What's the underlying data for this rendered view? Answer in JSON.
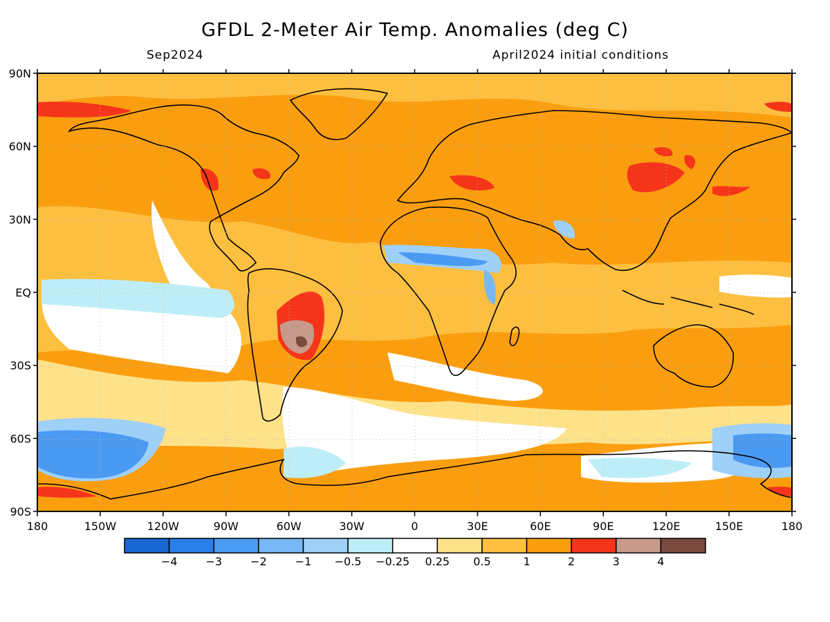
{
  "title": "GFDL 2-Meter Air Temp. Anomalies (deg C)",
  "subtitle_left": "Sep2024",
  "subtitle_right": "April2024 initial conditions",
  "lat_labels": [
    "90N",
    "60N",
    "30N",
    "EQ",
    "30S",
    "60S",
    "90S"
  ],
  "lon_labels": [
    "180",
    "150W",
    "120W",
    "90W",
    "60W",
    "30W",
    "0",
    "30E",
    "60E",
    "90E",
    "120E",
    "150E",
    "180"
  ],
  "colorbar": {
    "colors": [
      "#1a66d2",
      "#2a7fe8",
      "#4a9af2",
      "#78b8f6",
      "#9ed0f8",
      "#bdeef8",
      "#ffffff",
      "#fde28a",
      "#fdbf40",
      "#fa9e10",
      "#f5351a",
      "#c79a8c",
      "#7a4a3e"
    ],
    "labels": [
      "-4",
      "-3",
      "-2",
      "-1",
      "-0.5",
      "-0.25",
      "0.25",
      "0.5",
      "1",
      "2",
      "3",
      "4"
    ]
  },
  "colors": {
    "background_ocean": "#fa9e10",
    "frame": "#000000"
  }
}
